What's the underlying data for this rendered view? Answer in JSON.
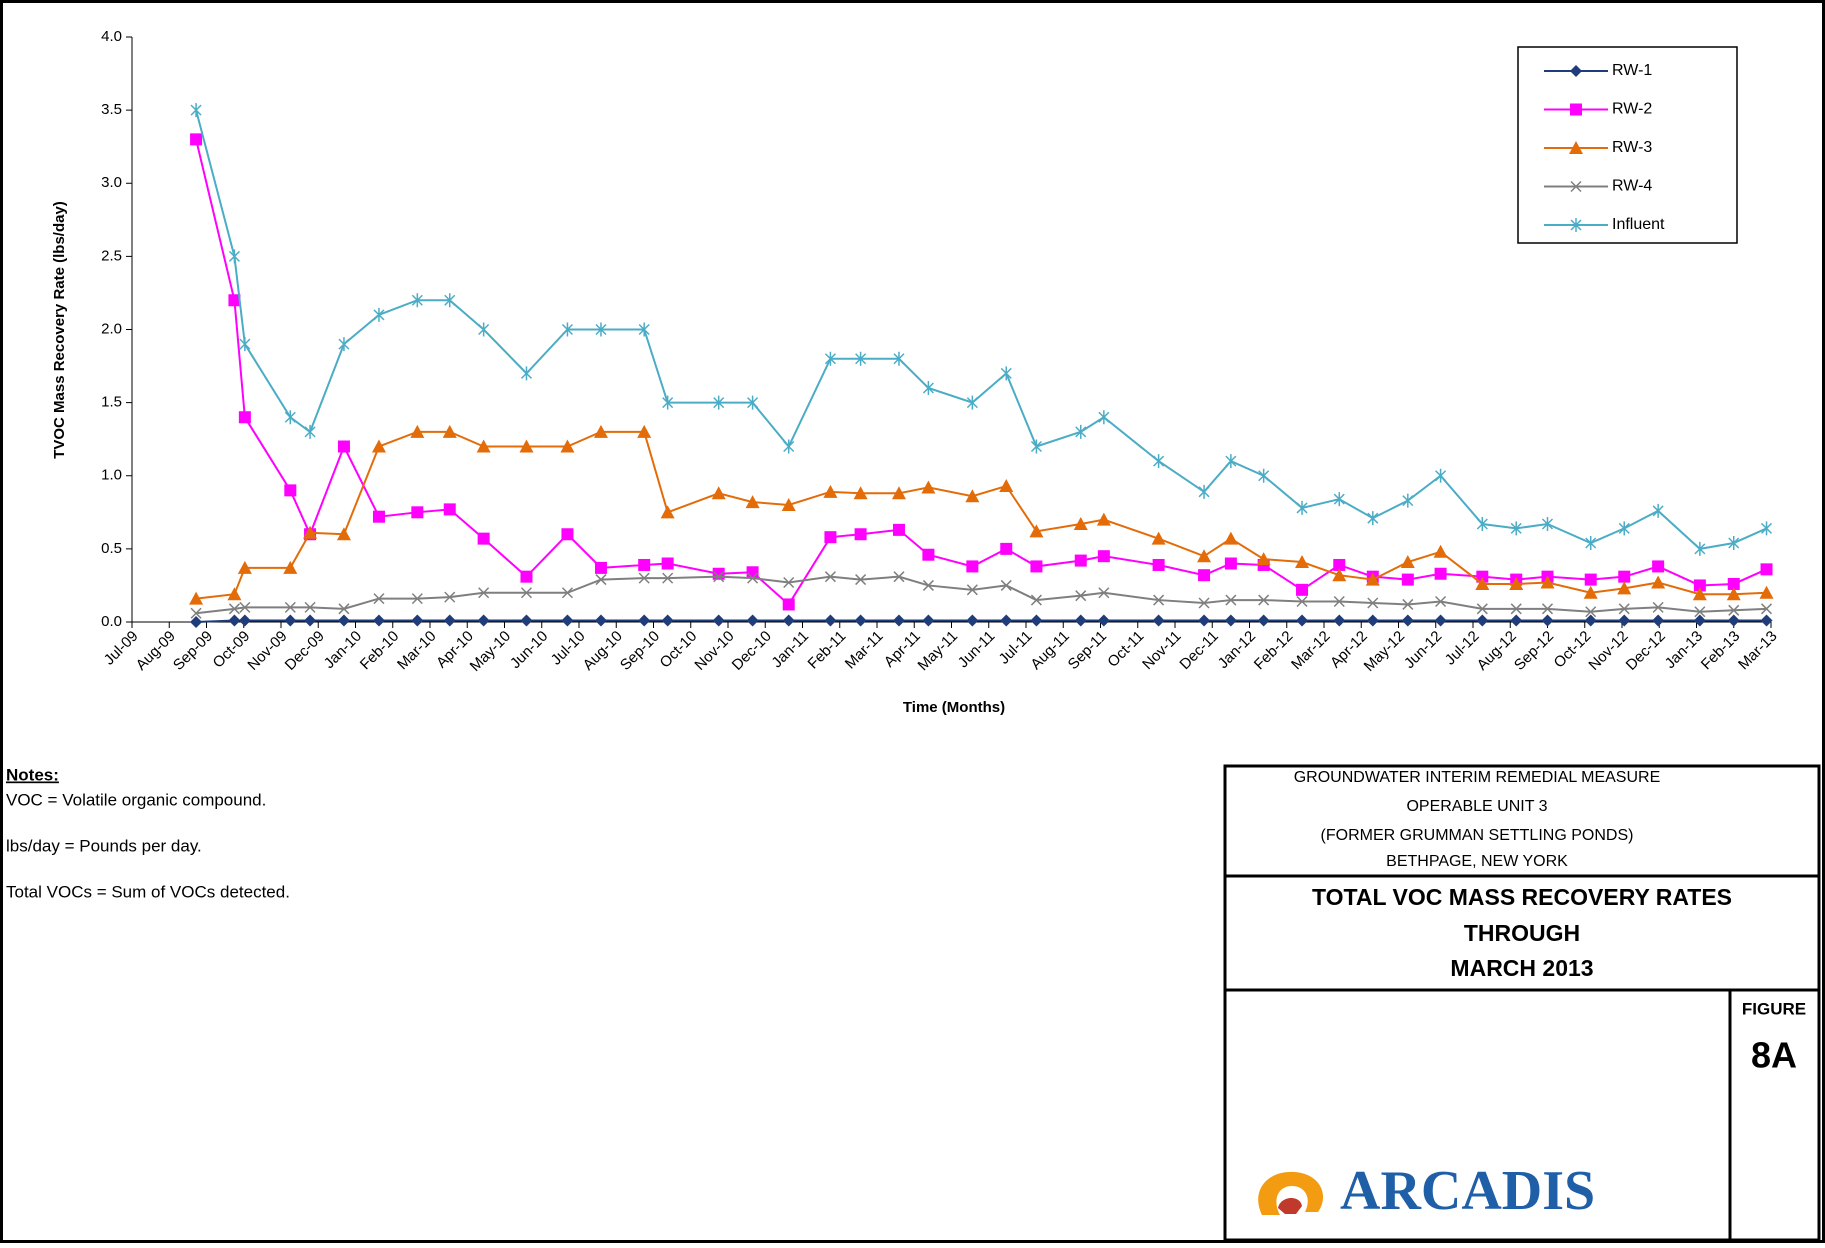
{
  "chart_data": {
    "type": "line",
    "y_label": "TVOC Mass Recovery Rate (lbs/day)",
    "x_label": "Time (Months)",
    "xlim": [
      0,
      44
    ],
    "xticks": [
      {
        "value": 0,
        "label": "Jul-09"
      },
      {
        "value": 1,
        "label": "Aug-09"
      },
      {
        "value": 2,
        "label": "Sep-09"
      },
      {
        "value": 3,
        "label": "Oct-09"
      },
      {
        "value": 4,
        "label": "Nov-09"
      },
      {
        "value": 5,
        "label": "Dec-09"
      },
      {
        "value": 6,
        "label": "Jan-10"
      },
      {
        "value": 7,
        "label": "Feb-10"
      },
      {
        "value": 8,
        "label": "Mar-10"
      },
      {
        "value": 9,
        "label": "Apr-10"
      },
      {
        "value": 10,
        "label": "May-10"
      },
      {
        "value": 11,
        "label": "Jun-10"
      },
      {
        "value": 12,
        "label": "Jul-10"
      },
      {
        "value": 13,
        "label": "Aug-10"
      },
      {
        "value": 14,
        "label": "Sep-10"
      },
      {
        "value": 15,
        "label": "Oct-10"
      },
      {
        "value": 16,
        "label": "Nov-10"
      },
      {
        "value": 17,
        "label": "Dec-10"
      },
      {
        "value": 18,
        "label": "Jan-11"
      },
      {
        "value": 19,
        "label": "Feb-11"
      },
      {
        "value": 20,
        "label": "Mar-11"
      },
      {
        "value": 21,
        "label": "Apr-11"
      },
      {
        "value": 22,
        "label": "May-11"
      },
      {
        "value": 23,
        "label": "Jun-11"
      },
      {
        "value": 24,
        "label": "Jul-11"
      },
      {
        "value": 25,
        "label": "Aug-11"
      },
      {
        "value": 26,
        "label": "Sep-11"
      },
      {
        "value": 27,
        "label": "Oct-11"
      },
      {
        "value": 28,
        "label": "Nov-11"
      },
      {
        "value": 29,
        "label": "Dec-11"
      },
      {
        "value": 30,
        "label": "Jan-12"
      },
      {
        "value": 31,
        "label": "Feb-12"
      },
      {
        "value": 32,
        "label": "Mar-12"
      },
      {
        "value": 33,
        "label": "Apr-12"
      },
      {
        "value": 34,
        "label": "May-12"
      },
      {
        "value": 35,
        "label": "Jun-12"
      },
      {
        "value": 36,
        "label": "Jul-12"
      },
      {
        "value": 37,
        "label": "Aug-12"
      },
      {
        "value": 38,
        "label": "Sep-12"
      },
      {
        "value": 39,
        "label": "Oct-12"
      },
      {
        "value": 40,
        "label": "Nov-12"
      },
      {
        "value": 41,
        "label": "Dec-12"
      },
      {
        "value": 42,
        "label": "Jan-13"
      },
      {
        "value": 43,
        "label": "Feb-13"
      },
      {
        "value": 44,
        "label": "Mar-13"
      }
    ],
    "ylim": [
      0,
      4
    ],
    "yticks": [
      {
        "value": 0,
        "label": "0.0"
      },
      {
        "value": 0.5,
        "label": "0.5"
      },
      {
        "value": 1,
        "label": "1.0"
      },
      {
        "value": 1.5,
        "label": "1.5"
      },
      {
        "value": 2,
        "label": "2.0"
      },
      {
        "value": 2.5,
        "label": "2.5"
      },
      {
        "value": 3,
        "label": "3.0"
      },
      {
        "value": 3.5,
        "label": "3.5"
      },
      {
        "value": 4,
        "label": "4.0"
      }
    ],
    "x": [
      1.72,
      2.75,
      3.03,
      4.25,
      4.78,
      5.69,
      6.63,
      7.66,
      8.53,
      9.44,
      10.59,
      11.69,
      12.59,
      13.75,
      14.38,
      15.75,
      16.66,
      17.63,
      18.75,
      19.56,
      20.59,
      21.38,
      22.56,
      23.47,
      24.28,
      25.47,
      26.09,
      27.56,
      28.78,
      29.5,
      30.38,
      31.41,
      32.41,
      33.31,
      34.25,
      35.13,
      36.25,
      37.16,
      38.0,
      39.16,
      40.06,
      40.97,
      42.09,
      43.0,
      43.88
    ],
    "legend": "top-right",
    "series": [
      {
        "name": "RW-1",
        "color": "#1f3d7a",
        "marker": "diamond",
        "values": [
          0.0,
          0.01,
          0.01,
          0.01,
          0.01,
          0.01,
          0.01,
          0.01,
          0.01,
          0.01,
          0.01,
          0.01,
          0.01,
          0.01,
          0.01,
          0.01,
          0.01,
          0.01,
          0.01,
          0.01,
          0.01,
          0.01,
          0.01,
          0.01,
          0.01,
          0.01,
          0.01,
          0.01,
          0.01,
          0.01,
          0.01,
          0.01,
          0.01,
          0.01,
          0.01,
          0.01,
          0.01,
          0.01,
          0.01,
          0.01,
          0.01,
          0.01,
          0.01,
          0.01,
          0.01
        ]
      },
      {
        "name": "RW-2",
        "color": "#ff00ff",
        "marker": "square",
        "values": [
          3.3,
          2.2,
          1.4,
          0.9,
          0.6,
          1.2,
          0.72,
          0.75,
          0.77,
          0.57,
          0.31,
          0.6,
          0.37,
          0.39,
          0.4,
          0.33,
          0.34,
          0.12,
          0.58,
          0.6,
          0.63,
          0.46,
          0.38,
          0.5,
          0.38,
          0.42,
          0.45,
          0.39,
          0.32,
          0.4,
          0.39,
          0.22,
          0.39,
          0.31,
          0.29,
          0.33,
          0.31,
          0.29,
          0.31,
          0.29,
          0.31,
          0.38,
          0.25,
          0.26,
          0.36
        ]
      },
      {
        "name": "RW-3",
        "color": "#e36c09",
        "marker": "triangle",
        "values": [
          0.16,
          0.19,
          0.37,
          0.37,
          0.61,
          0.6,
          1.2,
          1.3,
          1.3,
          1.2,
          1.2,
          1.2,
          1.3,
          1.3,
          0.75,
          0.88,
          0.82,
          0.8,
          0.89,
          0.88,
          0.88,
          0.92,
          0.86,
          0.93,
          0.62,
          0.67,
          0.7,
          0.57,
          0.45,
          0.57,
          0.43,
          0.41,
          0.32,
          0.29,
          0.41,
          0.48,
          0.26,
          0.26,
          0.27,
          0.2,
          0.23,
          0.27,
          0.19,
          0.19,
          0.2
        ]
      },
      {
        "name": "RW-4",
        "color": "#7f7f7f",
        "marker": "x",
        "values": [
          0.06,
          0.09,
          0.1,
          0.1,
          0.1,
          0.09,
          0.16,
          0.16,
          0.17,
          0.2,
          0.2,
          0.2,
          0.29,
          0.3,
          0.3,
          0.31,
          0.3,
          0.27,
          0.31,
          0.29,
          0.31,
          0.25,
          0.22,
          0.25,
          0.15,
          0.18,
          0.2,
          0.15,
          0.13,
          0.15,
          0.15,
          0.14,
          0.14,
          0.13,
          0.12,
          0.14,
          0.09,
          0.09,
          0.09,
          0.07,
          0.09,
          0.1,
          0.07,
          0.08,
          0.09
        ]
      },
      {
        "name": "Influent",
        "color": "#4bacc6",
        "marker": "star",
        "values": [
          3.5,
          2.5,
          1.9,
          1.4,
          1.3,
          1.9,
          2.1,
          2.2,
          2.2,
          2.0,
          1.7,
          2.0,
          2.0,
          2.0,
          1.5,
          1.5,
          1.5,
          1.2,
          1.8,
          1.8,
          1.8,
          1.6,
          1.5,
          1.7,
          1.2,
          1.3,
          1.4,
          1.1,
          0.89,
          1.1,
          1.0,
          0.78,
          0.84,
          0.71,
          0.83,
          1.0,
          0.67,
          0.64,
          0.67,
          0.54,
          0.64,
          0.76,
          0.5,
          0.54,
          0.64
        ]
      }
    ]
  },
  "notes": {
    "heading": "Notes:",
    "lines": [
      "VOC = Volatile organic compound.",
      "lbs/day = Pounds per day.",
      "Total VOCs = Sum of VOCs detected."
    ]
  },
  "title_block": {
    "lines": [
      "GROUNDWATER INTERIM REMEDIAL MEASURE",
      "OPERABLE UNIT 3",
      "(FORMER GRUMMAN SETTLING PONDS)",
      "BETHPAGE, NEW YORK"
    ],
    "title": [
      "TOTAL VOC MASS RECOVERY RATES",
      "THROUGH",
      "MARCH 2013"
    ],
    "logo": "ARCADIS",
    "figure_label": "FIGURE",
    "figure_number": "8A"
  }
}
